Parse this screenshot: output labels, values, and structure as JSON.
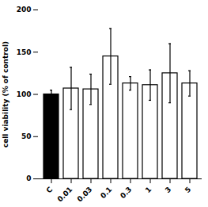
{
  "chart_data": {
    "type": "bar",
    "categories": [
      "C",
      "0.01",
      "0.03",
      "0.1",
      "0.3",
      "1",
      "3",
      "5"
    ],
    "values": [
      100,
      107,
      106,
      145,
      113,
      111,
      125,
      113
    ],
    "errors": [
      5,
      25,
      18,
      33,
      8,
      18,
      35,
      15
    ],
    "colors": [
      "#000000",
      "#ffffff",
      "#ffffff",
      "#ffffff",
      "#ffffff",
      "#ffffff",
      "#ffffff",
      "#ffffff"
    ],
    "ylabel": "cell viability (% of control)",
    "ylim": [
      0,
      200
    ],
    "yticks": [
      0,
      50,
      100,
      150,
      200
    ],
    "grid": false
  }
}
